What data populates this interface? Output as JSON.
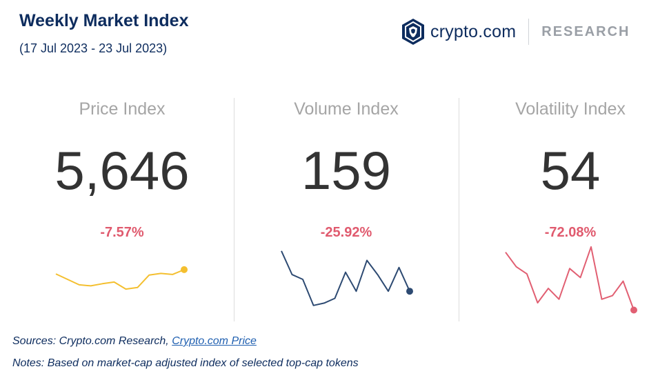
{
  "header": {
    "title": "Weekly Market Index",
    "subtitle": "(17 Jul 2023 - 23 Jul 2023)"
  },
  "brand": {
    "name": "crypto.com",
    "research": "RESEARCH",
    "logo_icon": "crypto-com-lion-shield-icon"
  },
  "colors": {
    "navy": "#0d2c5e",
    "negative_red": "#e05a6e",
    "price_line": "#f4bf2f",
    "volume_line": "#2d4a72",
    "volatility_line": "#e15f72"
  },
  "chart_data": [
    {
      "type": "line",
      "title": "Price Index",
      "value": "5,646",
      "change": "-7.57%",
      "series": [
        {
          "values": [
            56,
            55,
            54,
            53.8,
            54.2,
            54.5,
            53.2,
            53.5,
            55.8,
            56.1,
            55.9,
            56.8
          ]
        }
      ],
      "y_range": [
        48,
        62
      ],
      "color": "#f4bf2f"
    },
    {
      "type": "line",
      "title": "Volume Index",
      "value": "159",
      "change": "-25.92%",
      "series": [
        {
          "values": [
            64,
            54,
            52,
            41,
            42,
            44,
            55,
            47,
            60,
            54,
            47,
            57,
            47
          ]
        }
      ],
      "y_range": [
        36,
        68
      ],
      "color": "#2d4a72"
    },
    {
      "type": "line",
      "title": "Volatility Index",
      "value": "54",
      "change": "-72.08%",
      "series": [
        {
          "values": [
            74,
            66,
            62,
            46,
            54,
            48,
            65,
            60,
            77,
            48,
            50,
            58,
            42
          ]
        }
      ],
      "y_range": [
        38,
        80
      ],
      "color": "#e15f72"
    }
  ],
  "footer": {
    "sources_prefix": "Sources: Crypto.com Research, ",
    "sources_link": "Crypto.com Price",
    "notes": "Notes: Based on market-cap adjusted index of selected top-cap tokens"
  }
}
